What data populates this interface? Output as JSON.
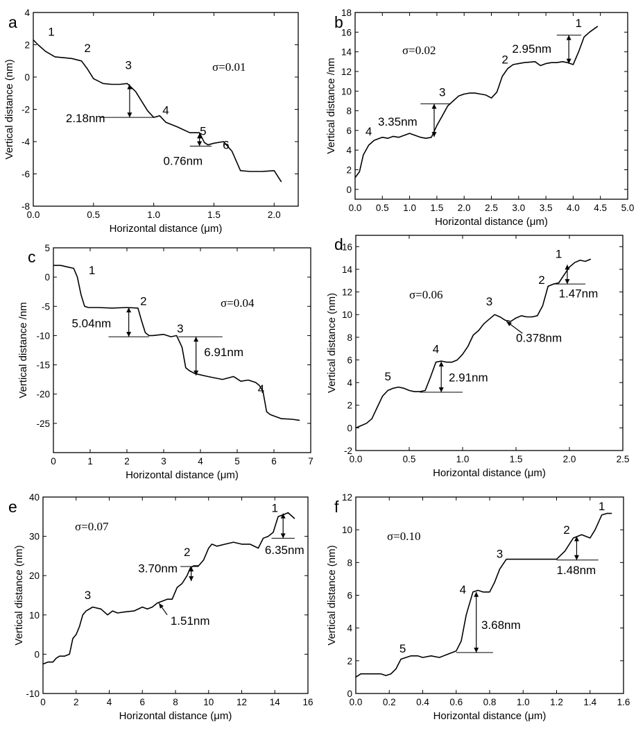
{
  "chart_data": [
    {
      "panel": "a",
      "type": "line",
      "xlabel": "Horizontal distance (μm)",
      "ylabel": "Vertical distance (nm)",
      "xlim": [
        0,
        2.2
      ],
      "ylim": [
        -8,
        4
      ],
      "xticks": [
        0.0,
        0.5,
        1.0,
        1.5,
        2.0
      ],
      "xtick_labels": [
        "0.0",
        "0.5",
        "1.0",
        "1.5",
        "2.0"
      ],
      "yticks": [
        -8,
        -6,
        -4,
        -2,
        0,
        2,
        4
      ],
      "ytick_labels": [
        "-8",
        "-6",
        "-4",
        "-2",
        "0",
        "2",
        "4"
      ],
      "sigma_label": "σ=0.01",
      "x": [
        0,
        0.04,
        0.1,
        0.18,
        0.25,
        0.32,
        0.4,
        0.45,
        0.5,
        0.58,
        0.65,
        0.72,
        0.78,
        0.85,
        0.9,
        0.95,
        1.0,
        1.05,
        1.1,
        1.2,
        1.3,
        1.38,
        1.42,
        1.45,
        1.5,
        1.58,
        1.65,
        1.72,
        1.8,
        1.9,
        2.0,
        2.06
      ],
      "y": [
        2.3,
        2.0,
        1.6,
        1.25,
        1.2,
        1.15,
        1.0,
        0.5,
        -0.1,
        -0.4,
        -0.45,
        -0.45,
        -0.4,
        -0.9,
        -1.5,
        -2.1,
        -2.5,
        -2.4,
        -2.8,
        -3.1,
        -3.45,
        -3.45,
        -4.05,
        -4.2,
        -4.1,
        -4.0,
        -4.6,
        -5.8,
        -5.85,
        -5.85,
        -5.8,
        -6.5
      ],
      "step_labels": [
        {
          "text": "1",
          "x": 0.15,
          "y": 2.55
        },
        {
          "text": "2",
          "x": 0.45,
          "y": 1.55
        },
        {
          "text": "3",
          "x": 0.79,
          "y": 0.5
        },
        {
          "text": "4",
          "x": 1.1,
          "y": -2.3
        },
        {
          "text": "5",
          "x": 1.41,
          "y": -3.6
        },
        {
          "text": "6",
          "x": 1.6,
          "y": -4.45
        }
      ],
      "measurements": [
        {
          "text": "2.18nm",
          "x": 0.8,
          "y_top": -0.45,
          "y_bottom": -2.5,
          "ref_x": [
            0.55,
            1.0
          ],
          "ref_y": -2.5,
          "label_x": 0.27,
          "label_y": -2.8
        },
        {
          "text": "0.76nm",
          "x": 1.38,
          "y_top": -3.5,
          "y_bottom": -4.28,
          "ref_x": [
            1.3,
            1.48
          ],
          "ref_y": -4.28,
          "label_x": 1.08,
          "label_y": -5.45
        }
      ]
    },
    {
      "panel": "b",
      "type": "line",
      "xlabel": "Horizontal distance (μm)",
      "ylabel": "Vertical distance /nm",
      "xlim": [
        0,
        5
      ],
      "ylim": [
        -1,
        18
      ],
      "xticks": [
        0,
        0.5,
        1,
        1.5,
        2,
        2.5,
        3,
        3.5,
        4,
        4.5,
        5
      ],
      "xtick_labels": [
        "0.0",
        "0.5",
        "1.0",
        "1.5",
        "2.0",
        "2.5",
        "3.0",
        "3.5",
        "4.0",
        "4.5",
        "5.0"
      ],
      "yticks": [
        0,
        2,
        4,
        6,
        8,
        10,
        12,
        14,
        16,
        18
      ],
      "ytick_labels": [
        "0",
        "2",
        "4",
        "6",
        "8",
        "10",
        "12",
        "14",
        "16",
        "18"
      ],
      "sigma_label": "σ=0.02",
      "x": [
        0,
        0.08,
        0.15,
        0.25,
        0.35,
        0.5,
        0.6,
        0.7,
        0.8,
        0.9,
        1.0,
        1.1,
        1.2,
        1.3,
        1.4,
        1.5,
        1.6,
        1.7,
        1.8,
        1.9,
        2.0,
        2.1,
        2.2,
        2.3,
        2.4,
        2.5,
        2.6,
        2.7,
        2.8,
        2.9,
        3.0,
        3.1,
        3.3,
        3.4,
        3.5,
        3.6,
        3.7,
        3.8,
        3.9,
        4.0,
        4.1,
        4.2,
        4.3,
        4.45
      ],
      "y": [
        1.2,
        1.8,
        3.5,
        4.5,
        5.0,
        5.3,
        5.2,
        5.4,
        5.3,
        5.5,
        5.7,
        5.5,
        5.3,
        5.2,
        5.3,
        6.5,
        7.5,
        8.5,
        9.0,
        9.5,
        9.7,
        9.8,
        9.8,
        9.7,
        9.6,
        9.3,
        9.9,
        11.5,
        12.3,
        12.7,
        12.8,
        12.9,
        13.0,
        12.6,
        12.8,
        12.9,
        12.9,
        13.0,
        12.9,
        12.7,
        14.0,
        15.5,
        16.0,
        16.6
      ],
      "step_labels": [
        {
          "text": "1",
          "x": 4.1,
          "y": 16.5
        },
        {
          "text": "2",
          "x": 2.75,
          "y": 12.8
        },
        {
          "text": "3",
          "x": 1.6,
          "y": 9.5
        },
        {
          "text": "4",
          "x": 0.25,
          "y": 5.5
        }
      ],
      "measurements": [
        {
          "text": "2.95nm",
          "x": 3.92,
          "y_top": 15.7,
          "y_bottom": 12.8,
          "ref_x": [
            3.7,
            4.15
          ],
          "ref_y": 15.7,
          "label_x": 2.88,
          "label_y": 13.9
        },
        {
          "text": "3.35nm",
          "x": 1.45,
          "y_top": 8.7,
          "y_bottom": 5.35,
          "ref_x": [
            1.2,
            1.75
          ],
          "ref_y": 8.7,
          "label_x": 0.42,
          "label_y": 6.5
        }
      ]
    },
    {
      "panel": "c",
      "type": "line",
      "xlabel": "Horizontal distance (μm)",
      "ylabel": "Vertical distance /nm",
      "xlim": [
        0,
        7
      ],
      "ylim": [
        -30,
        5
      ],
      "xticks": [
        0,
        1,
        2,
        3,
        4,
        5,
        6,
        7
      ],
      "xtick_labels": [
        "0",
        "1",
        "2",
        "3",
        "4",
        "5",
        "6",
        "7"
      ],
      "yticks": [
        -25,
        -20,
        -15,
        -10,
        -5,
        0,
        5
      ],
      "ytick_labels": [
        "-25",
        "-20",
        "-15",
        "-10",
        "-5",
        "0",
        "5"
      ],
      "sigma_label": "σ=0.04",
      "x": [
        0,
        0.2,
        0.4,
        0.55,
        0.65,
        0.75,
        0.85,
        0.95,
        1.2,
        1.6,
        2.0,
        2.3,
        2.4,
        2.5,
        2.6,
        2.7,
        3.0,
        3.2,
        3.35,
        3.5,
        3.6,
        3.7,
        3.85,
        4.2,
        4.6,
        4.9,
        5.1,
        5.3,
        5.5,
        5.6,
        5.7,
        5.8,
        5.9,
        6.2,
        6.5,
        6.7
      ],
      "y": [
        2,
        2,
        1.7,
        1.5,
        0,
        -3,
        -5,
        -5.2,
        -5.2,
        -5.3,
        -5.2,
        -5.3,
        -7.5,
        -9.5,
        -10,
        -10,
        -9.8,
        -10.2,
        -10,
        -12,
        -15.5,
        -16,
        -16.5,
        -17,
        -17.5,
        -17,
        -17.8,
        -17.6,
        -18,
        -18.5,
        -19.5,
        -23,
        -23.5,
        -24.2,
        -24.3,
        -24.5
      ],
      "step_labels": [
        {
          "text": "1",
          "x": 1.05,
          "y": 0.5
        },
        {
          "text": "2",
          "x": 2.45,
          "y": -4.8
        },
        {
          "text": "3",
          "x": 3.45,
          "y": -9.5
        },
        {
          "text": "4",
          "x": 5.65,
          "y": -19.8
        }
      ],
      "measurements": [
        {
          "text": "5.04nm",
          "x": 2.05,
          "y_top": -5.2,
          "y_bottom": -10.2,
          "ref_x": [
            1.5,
            2.6
          ],
          "ref_y": -10.2,
          "label_x": 0.5,
          "label_y": -8.6
        },
        {
          "text": "6.91nm",
          "x": 3.88,
          "y_top": -10.2,
          "y_bottom": -16.8,
          "ref_x": [
            3.4,
            4.6
          ],
          "ref_y": -10.2,
          "label_x": 4.1,
          "label_y": -13.5
        }
      ]
    },
    {
      "panel": "d",
      "type": "line",
      "xlabel": "Horizontal distance (μm)",
      "ylabel": "Vertical distance (nm)",
      "xlim": [
        0,
        2.5
      ],
      "ylim": [
        -2,
        17
      ],
      "xticks": [
        0,
        0.5,
        1,
        1.5,
        2,
        2.5
      ],
      "xtick_labels": [
        "0.0",
        "0.5",
        "1.0",
        "1.5",
        "2.0",
        "2.5"
      ],
      "yticks": [
        -2,
        0,
        2,
        4,
        6,
        8,
        10,
        12,
        14,
        16
      ],
      "ytick_labels": [
        "-2",
        "0",
        "2",
        "4",
        "6",
        "8",
        "10",
        "12",
        "14",
        "16"
      ],
      "sigma_label": "σ=0.06",
      "x": [
        0,
        0.05,
        0.1,
        0.15,
        0.2,
        0.25,
        0.3,
        0.35,
        0.4,
        0.45,
        0.5,
        0.55,
        0.6,
        0.65,
        0.7,
        0.75,
        0.8,
        0.85,
        0.9,
        0.95,
        1.0,
        1.05,
        1.1,
        1.15,
        1.2,
        1.25,
        1.3,
        1.35,
        1.4,
        1.45,
        1.5,
        1.55,
        1.6,
        1.65,
        1.7,
        1.75,
        1.8,
        1.85,
        1.9,
        1.95,
        2.0,
        2.05,
        2.1,
        2.15,
        2.2
      ],
      "y": [
        0,
        0.2,
        0.4,
        0.8,
        1.8,
        2.8,
        3.3,
        3.5,
        3.6,
        3.5,
        3.3,
        3.2,
        3.2,
        3.3,
        4.5,
        5.8,
        5.9,
        5.8,
        5.8,
        6.0,
        6.5,
        7.2,
        8.2,
        8.6,
        9.2,
        9.6,
        10.0,
        9.8,
        9.5,
        9.4,
        9.7,
        9.9,
        9.8,
        9.8,
        9.9,
        10.8,
        12.5,
        12.7,
        12.8,
        13.5,
        14.2,
        14.6,
        14.8,
        14.7,
        14.9
      ],
      "step_labels": [
        {
          "text": "1",
          "x": 1.9,
          "y": 15.0
        },
        {
          "text": "2",
          "x": 1.74,
          "y": 12.7
        },
        {
          "text": "3",
          "x": 1.25,
          "y": 10.8
        },
        {
          "text": "4",
          "x": 0.75,
          "y": 6.6
        },
        {
          "text": "5",
          "x": 0.3,
          "y": 4.2
        }
      ],
      "measurements": [
        {
          "text": "1.47nm",
          "x": 1.98,
          "y_top": 14.4,
          "y_bottom": 12.7,
          "ref_x": [
            1.85,
            2.15
          ],
          "ref_y": 12.7,
          "label_x": 1.9,
          "label_y": 11.5
        },
        {
          "text": "2.91nm",
          "x": 0.8,
          "y_top": 5.85,
          "y_bottom": 3.15,
          "ref_x": [
            0.6,
            1.0
          ],
          "ref_y": 3.15,
          "label_x": 0.87,
          "label_y": 4.1
        }
      ],
      "callouts": [
        {
          "text": "0.378nm",
          "label_x": 1.5,
          "label_y": 7.6,
          "tip_x": 1.41,
          "tip_y": 9.4,
          "tail_x": 1.56,
          "tail_y": 8.35
        }
      ]
    },
    {
      "panel": "e",
      "type": "line",
      "xlabel": "Horizontal distance (μm)",
      "ylabel": "Vertical distance (nm)",
      "xlim": [
        0,
        16
      ],
      "ylim": [
        -10,
        40
      ],
      "xticks": [
        0,
        2,
        4,
        6,
        8,
        10,
        12,
        14,
        16
      ],
      "xtick_labels": [
        "0",
        "2",
        "4",
        "6",
        "8",
        "10",
        "12",
        "14",
        "16"
      ],
      "yticks": [
        -10,
        0,
        10,
        20,
        30,
        40
      ],
      "ytick_labels": [
        "-10",
        "0",
        "10",
        "20",
        "30",
        "40"
      ],
      "sigma_label": "σ=0.07",
      "x": [
        0,
        0.3,
        0.6,
        0.8,
        1.0,
        1.3,
        1.6,
        1.8,
        2.0,
        2.2,
        2.4,
        2.6,
        3.0,
        3.5,
        3.9,
        4.2,
        4.5,
        5.0,
        5.5,
        6.0,
        6.3,
        6.6,
        6.9,
        7.2,
        7.5,
        7.8,
        8.1,
        8.4,
        8.7,
        8.9,
        9.1,
        9.4,
        9.7,
        10.0,
        10.2,
        10.5,
        11.0,
        11.5,
        12.0,
        12.5,
        13.0,
        13.3,
        13.6,
        13.9,
        14.2,
        14.5,
        14.8,
        15.2
      ],
      "y": [
        -2.5,
        -2,
        -2,
        -1,
        -0.5,
        -0.5,
        0,
        4,
        5,
        7,
        10,
        11,
        12,
        11.5,
        10,
        11,
        10.5,
        10.8,
        11,
        12,
        11.5,
        12,
        13,
        13.5,
        14,
        14,
        17,
        18,
        20,
        22,
        22.5,
        22.5,
        24,
        27,
        28,
        27.5,
        28,
        28.5,
        28,
        28,
        27,
        29.5,
        30,
        31,
        35,
        35.5,
        36,
        34.5
      ],
      "step_labels": [
        {
          "text": "1",
          "x": 14.0,
          "y": 36.2
        },
        {
          "text": "2",
          "x": 8.7,
          "y": 25.0
        },
        {
          "text": "3",
          "x": 2.7,
          "y": 14.0
        }
      ],
      "measurements": [
        {
          "text": "6.35nm",
          "x": 14.5,
          "y_top": 35.8,
          "y_bottom": 29.5,
          "ref_x": [
            13.8,
            15.2
          ],
          "ref_y": 29.5,
          "label_x": 13.4,
          "label_y": 25.5
        },
        {
          "text": "3.70nm",
          "x": 8.95,
          "y_top": 22.3,
          "y_bottom": 18.6,
          "ref_x": [
            8.3,
            9.4
          ],
          "ref_y": 22.3,
          "label_x": 5.75,
          "label_y": 20.8
        }
      ],
      "callouts": [
        {
          "text": "1.51nm",
          "label_x": 7.7,
          "label_y": 7.5,
          "tip_x": 7.0,
          "tip_y": 13.0,
          "tail_x": 7.5,
          "tail_y": 10.0
        }
      ]
    },
    {
      "panel": "f",
      "type": "line",
      "xlabel": "Horizontal distance (μm)",
      "ylabel": "Vertical distance (nm)",
      "xlim": [
        0,
        1.6
      ],
      "ylim": [
        0,
        12
      ],
      "xticks": [
        0,
        0.2,
        0.4,
        0.6,
        0.8,
        1.0,
        1.2,
        1.4,
        1.6
      ],
      "xtick_labels": [
        "0.0",
        "0.2",
        "0.4",
        "0.6",
        "0.8",
        "1.0",
        "1.2",
        "1.4",
        "1.6"
      ],
      "yticks": [
        0,
        2,
        4,
        6,
        8,
        10,
        12
      ],
      "ytick_labels": [
        "0",
        "2",
        "4",
        "6",
        "8",
        "10",
        "12"
      ],
      "sigma_label": "σ=0.10",
      "x": [
        0,
        0.03,
        0.06,
        0.1,
        0.15,
        0.18,
        0.21,
        0.24,
        0.27,
        0.3,
        0.33,
        0.37,
        0.4,
        0.45,
        0.5,
        0.55,
        0.6,
        0.63,
        0.66,
        0.7,
        0.73,
        0.76,
        0.8,
        0.83,
        0.86,
        0.9,
        1.0,
        1.1,
        1.2,
        1.25,
        1.3,
        1.35,
        1.4,
        1.43,
        1.47,
        1.5,
        1.53
      ],
      "y": [
        1.0,
        1.2,
        1.2,
        1.2,
        1.2,
        1.1,
        1.2,
        1.5,
        2.1,
        2.2,
        2.3,
        2.3,
        2.2,
        2.3,
        2.2,
        2.4,
        2.6,
        3.2,
        4.8,
        6.2,
        6.3,
        6.2,
        6.2,
        6.8,
        7.6,
        8.2,
        8.2,
        8.2,
        8.2,
        8.7,
        9.5,
        9.7,
        9.5,
        10.0,
        10.9,
        11.0,
        11.0
      ],
      "step_labels": [
        {
          "text": "1",
          "x": 1.47,
          "y": 11.2
        },
        {
          "text": "2",
          "x": 1.26,
          "y": 9.75
        },
        {
          "text": "3",
          "x": 0.86,
          "y": 8.3
        },
        {
          "text": "4",
          "x": 0.64,
          "y": 6.1
        },
        {
          "text": "5",
          "x": 0.28,
          "y": 2.5
        }
      ],
      "measurements": [
        {
          "text": "1.48nm",
          "x": 1.32,
          "y_top": 9.6,
          "y_bottom": 8.15,
          "ref_x": [
            1.2,
            1.45
          ],
          "ref_y": 8.15,
          "label_x": 1.2,
          "label_y": 7.3
        },
        {
          "text": "3.68nm",
          "x": 0.72,
          "y_top": 6.2,
          "y_bottom": 2.5,
          "ref_x": [
            0.6,
            0.82
          ],
          "ref_y": 2.5,
          "label_x": 0.75,
          "label_y": 3.95
        }
      ]
    }
  ]
}
